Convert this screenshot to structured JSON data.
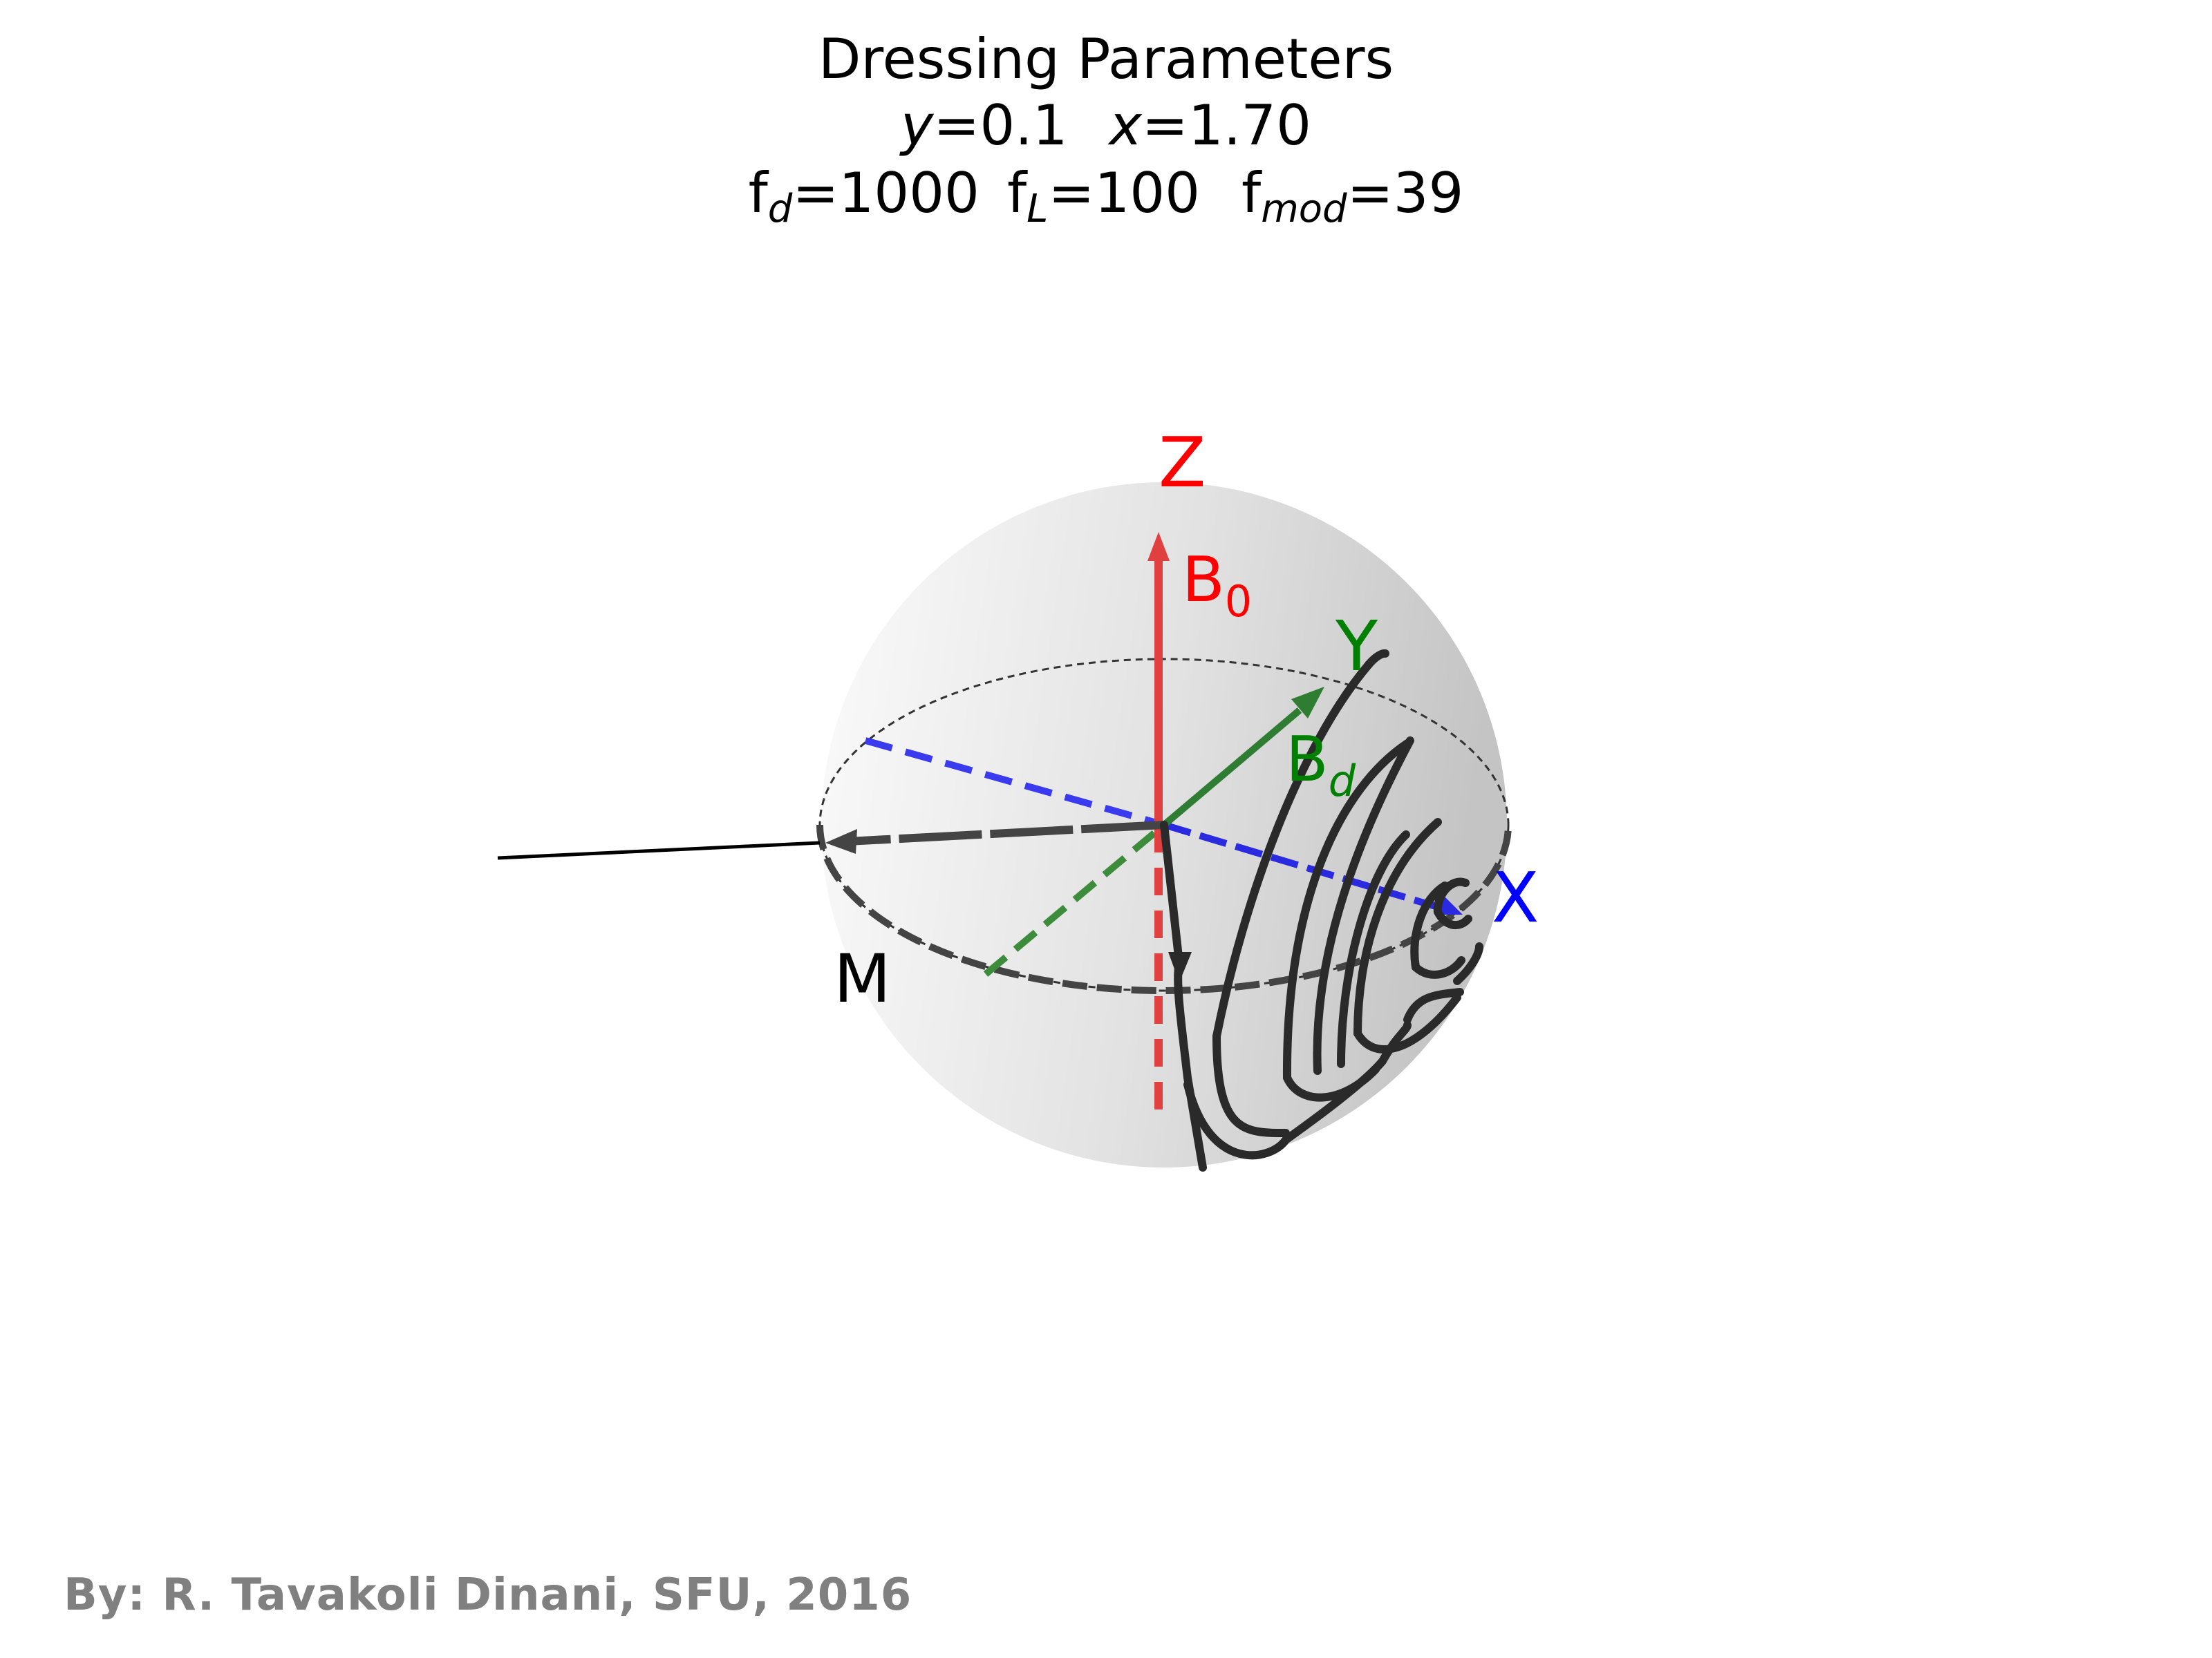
{
  "title": {
    "line1": "Dressing Parameters",
    "y_var": "y",
    "y_val": "=0.1",
    "x_var": "x",
    "x_val": "=1.70",
    "fd_base": "f",
    "fd_sub": "d",
    "fd_val": "=1000",
    "fl_base": "f",
    "fl_sub": "L",
    "fl_val": "=100",
    "fmod_base": "f",
    "fmod_sub": "mod",
    "fmod_val": "=39"
  },
  "labels": {
    "z_axis": "Z",
    "x_axis": "X",
    "y_axis": "Y",
    "b0_base": "B",
    "b0_sub": "0",
    "bd_base": "B",
    "bd_sub": "d",
    "m_label": "M"
  },
  "colors": {
    "z_axis": "#ff0000",
    "x_axis": "#0000ff",
    "y_axis": "#008000",
    "trajectory": "#2a2a2a",
    "credit": "#808080"
  },
  "credit": "By: R. Tavakoli Dinani, SFU, 2016"
}
